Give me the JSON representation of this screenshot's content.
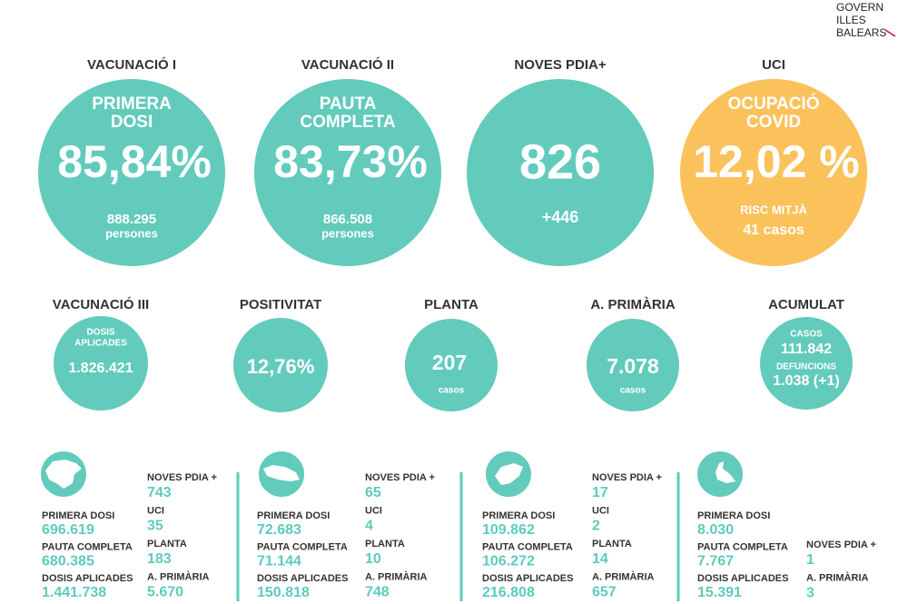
{
  "logo": [
    "GOVERN",
    "ILLES",
    "BALEARS"
  ],
  "top": [
    {
      "heading": "VACUNACIÓ I",
      "label": [
        "PRIMERA",
        "DOSI"
      ],
      "value": "85,84%",
      "sub": [
        "888.295",
        "persones"
      ]
    },
    {
      "heading": "VACUNACIÓ II",
      "label": [
        "PAUTA",
        "COMPLETA"
      ],
      "value": "83,73%",
      "sub": [
        "866.508",
        "persones"
      ]
    },
    {
      "heading": "NOVES PDIA+",
      "label": [],
      "value": "826",
      "sub": [
        "+446"
      ]
    },
    {
      "heading": "UCI",
      "label": [
        "OCUPACIÓ",
        "COVID"
      ],
      "value": "12,02 %",
      "sub": [
        "RISC MITJÀ",
        "41 casos"
      ]
    }
  ],
  "middle": [
    {
      "heading": "VACUNACIÓ III",
      "lines": [
        "DOSIS",
        "APLICADES",
        "1.826.421"
      ]
    },
    {
      "heading": "POSITIVITAT",
      "lines": [
        "12,76%"
      ]
    },
    {
      "heading": "PLANTA",
      "lines": [
        "207",
        "casos"
      ]
    },
    {
      "heading": "A. PRIMÀRIA",
      "lines": [
        "7.078",
        "casos"
      ]
    },
    {
      "heading": "ACUMULAT",
      "lines": [
        "CASOS",
        "111.842",
        "DEFUNCIONS",
        "1.038 (+1)"
      ]
    }
  ],
  "islands": [
    {
      "left": [
        {
          "label": "PRIMERA DOSI",
          "value": "696.619"
        },
        {
          "label": "PAUTA COMPLETA",
          "value": "680.385"
        },
        {
          "label": "DOSIS APLICADES",
          "value": "1.441.738"
        }
      ],
      "right": [
        {
          "label": "NOVES PDIA +",
          "value": "743"
        },
        {
          "label": "UCI",
          "value": "35"
        },
        {
          "label": "PLANTA",
          "value": "183"
        },
        {
          "label": "A. PRIMÀRIA",
          "value": "5.670"
        }
      ]
    },
    {
      "left": [
        {
          "label": "PRIMERA DOSI",
          "value": "72.683"
        },
        {
          "label": "PAUTA COMPLETA",
          "value": "71.144"
        },
        {
          "label": "DOSIS APLICADES",
          "value": "150.818"
        }
      ],
      "right": [
        {
          "label": "NOVES PDIA +",
          "value": "65"
        },
        {
          "label": "UCI",
          "value": "4"
        },
        {
          "label": "PLANTA",
          "value": "10"
        },
        {
          "label": "A. PRIMÀRIA",
          "value": "748"
        }
      ]
    },
    {
      "left": [
        {
          "label": "PRIMERA DOSI",
          "value": "109.862"
        },
        {
          "label": "PAUTA COMPLETA",
          "value": "106.272"
        },
        {
          "label": "DOSIS APLICADES",
          "value": "216.808"
        }
      ],
      "right": [
        {
          "label": "NOVES PDIA +",
          "value": "17"
        },
        {
          "label": "UCI",
          "value": "2"
        },
        {
          "label": "PLANTA",
          "value": "14"
        },
        {
          "label": "A. PRIMÀRIA",
          "value": "657"
        }
      ]
    },
    {
      "left": [
        {
          "label": "PRIMERA DOSI",
          "value": "8.030"
        },
        {
          "label": "PAUTA COMPLETA",
          "value": "7.767"
        },
        {
          "label": "DOSIS APLICADES",
          "value": "15.391"
        }
      ],
      "right": [
        {
          "label": "NOVES PDIA +",
          "value": "1"
        },
        {
          "label": "A. PRIMÀRIA",
          "value": "3"
        }
      ]
    }
  ]
}
